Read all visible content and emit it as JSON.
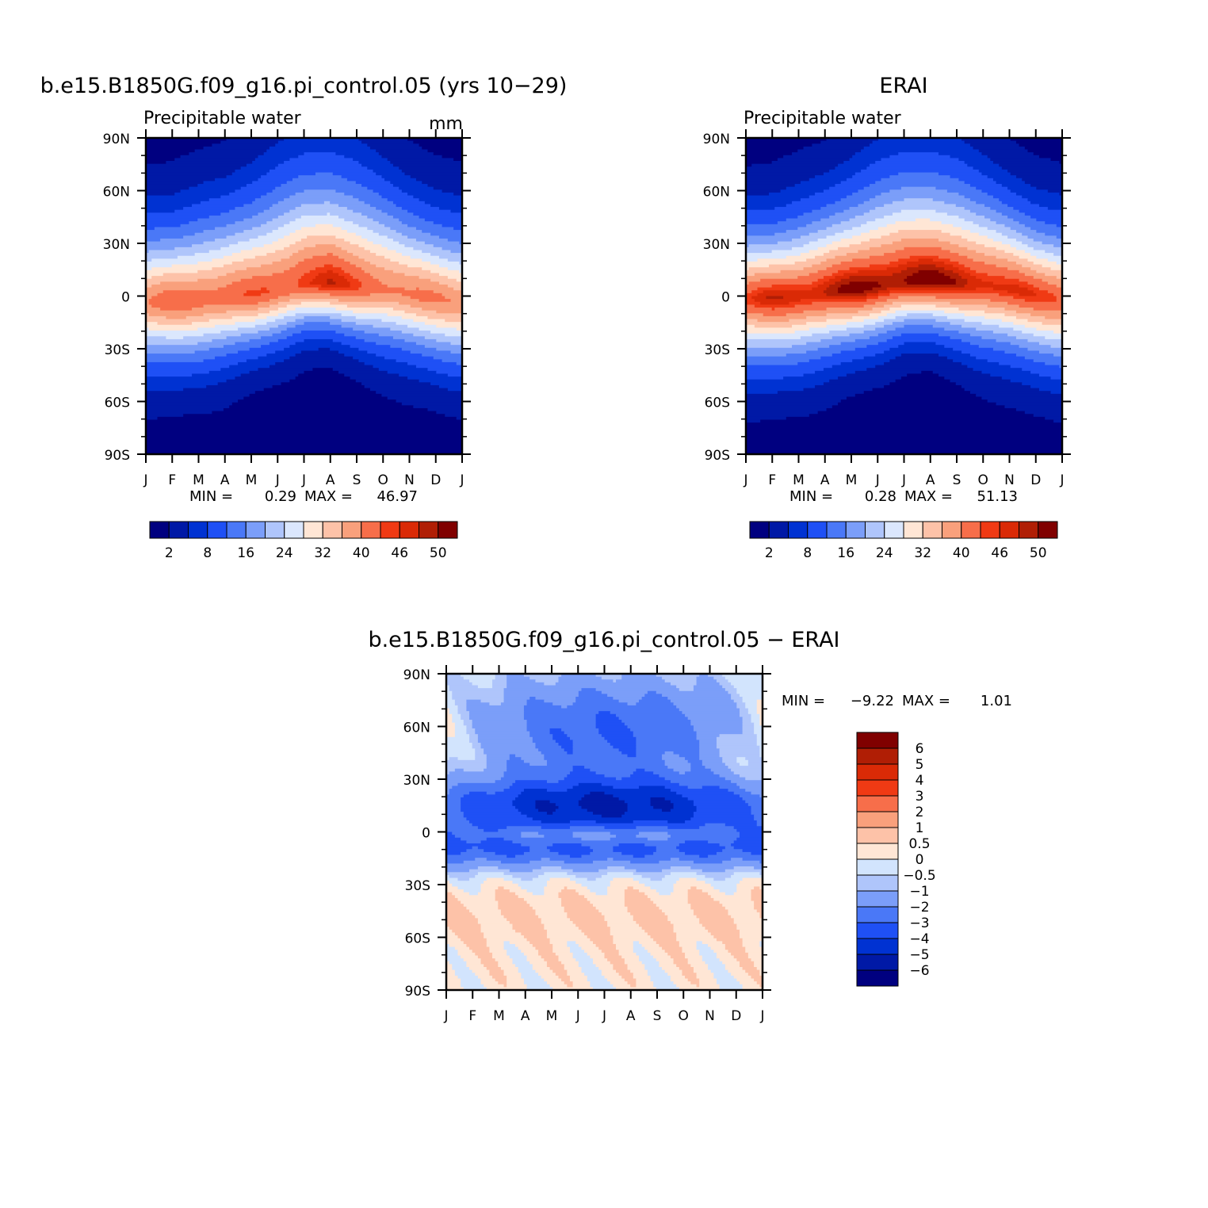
{
  "colors": {
    "abs_levels": [
      "#000080",
      "#0019a6",
      "#0032d2",
      "#1f50f5",
      "#4a78f7",
      "#7b9ef9",
      "#afc5fb",
      "#dbe7fd",
      "#ffe6d5",
      "#fdc2a8",
      "#f9a07c",
      "#f76e4a",
      "#f03a14",
      "#da2a06",
      "#b01e05",
      "#800000"
    ],
    "diff_levels": [
      "#000080",
      "#0019a6",
      "#0032d2",
      "#1f50f5",
      "#4a78f7",
      "#7b9ef9",
      "#afc5fb",
      "#d2e4fd",
      "#ffe6d5",
      "#fdc2a8",
      "#f9a07c",
      "#f76e4a",
      "#f03a14",
      "#da2a06",
      "#b01e05",
      "#800000"
    ]
  },
  "panel_model": {
    "title": "b.e15.B1850G.f09_g16.pi_control.05 (yrs 10−29)",
    "variable": "Precipitable water",
    "units": "mm",
    "stats": {
      "min_label": "MIN =",
      "min": "0.29",
      "max_label": "MAX =",
      "max": "46.97"
    }
  },
  "panel_obs": {
    "title": "ERAI",
    "variable": "Precipitable water",
    "stats": {
      "min_label": "MIN =",
      "min": "0.28",
      "max_label": "MAX =",
      "max": "51.13"
    }
  },
  "panel_diff": {
    "title": "b.e15.B1850G.f09_g16.pi_control.05 − ERAI",
    "stats": {
      "min_label": "MIN =",
      "min": "−9.22",
      "max_label": "MAX =",
      "max": "1.01"
    }
  },
  "abs_colorbar_labels": [
    "2",
    "8",
    "16",
    "24",
    "32",
    "40",
    "46",
    "50"
  ],
  "diff_colorbar_labels": [
    "6",
    "5",
    "4",
    "3",
    "2",
    "1",
    "0.5",
    "0",
    "−0.5",
    "−1",
    "−2",
    "−3",
    "−4",
    "−5",
    "−6"
  ],
  "chart_data": [
    {
      "type": "heatmap",
      "title": "b.e15.B1850G.f09_g16.pi_control.05 (yrs 10−29)",
      "subtitle": "Precipitable water",
      "units": "mm",
      "x": [
        "J",
        "F",
        "M",
        "A",
        "M",
        "J",
        "J",
        "A",
        "S",
        "O",
        "N",
        "D",
        "J"
      ],
      "y": [
        "90N",
        "60N",
        "30N",
        "0",
        "30S",
        "60S",
        "90S"
      ],
      "y_values": [
        90,
        60,
        30,
        0,
        -30,
        -60,
        -90
      ],
      "levels": [
        2,
        5,
        8,
        12,
        16,
        20,
        24,
        28,
        32,
        36,
        40,
        44,
        46,
        48,
        50
      ],
      "center_lat": [
        -4,
        -3,
        -2,
        -1,
        1,
        4,
        7,
        8,
        6,
        4,
        1,
        -1,
        -4
      ],
      "peak": [
        40,
        42,
        43,
        43,
        43,
        44,
        46,
        47,
        45,
        42,
        40,
        40,
        40
      ],
      "north_width": [
        36,
        36,
        38,
        40,
        44,
        48,
        50,
        50,
        48,
        44,
        40,
        37,
        36
      ],
      "south_width": [
        30,
        30,
        29,
        28,
        26,
        24,
        22,
        22,
        24,
        27,
        29,
        30,
        30
      ],
      "min": 0.29,
      "max": 46.97
    },
    {
      "type": "heatmap",
      "title": "ERAI",
      "subtitle": "Precipitable water",
      "x": [
        "J",
        "F",
        "M",
        "A",
        "M",
        "J",
        "J",
        "A",
        "S",
        "O",
        "N",
        "D",
        "J"
      ],
      "y": [
        "90N",
        "60N",
        "30N",
        "0",
        "30S",
        "60S",
        "90S"
      ],
      "y_values": [
        90,
        60,
        30,
        0,
        -30,
        -60,
        -90
      ],
      "levels": [
        2,
        5,
        8,
        12,
        16,
        20,
        24,
        28,
        32,
        36,
        40,
        44,
        46,
        48,
        50
      ],
      "center_lat": [
        -2,
        -1,
        0,
        2,
        4,
        6,
        8,
        9,
        8,
        6,
        4,
        1,
        -2
      ],
      "peak": [
        45,
        47,
        48,
        49,
        50,
        51,
        51,
        51,
        50,
        48,
        46,
        45,
        45
      ],
      "north_width": [
        34,
        34,
        36,
        38,
        42,
        46,
        48,
        48,
        46,
        42,
        38,
        35,
        34
      ],
      "south_width": [
        31,
        31,
        30,
        29,
        27,
        25,
        23,
        23,
        25,
        28,
        30,
        31,
        31
      ],
      "min": 0.28,
      "max": 51.13
    },
    {
      "type": "heatmap",
      "title": "b.e15.B1850G.f09_g16.pi_control.05 − ERAI",
      "x": [
        "J",
        "F",
        "M",
        "A",
        "M",
        "J",
        "J",
        "A",
        "S",
        "O",
        "N",
        "D",
        "J"
      ],
      "y": [
        "90N",
        "60N",
        "30N",
        "0",
        "30S",
        "60S",
        "90S"
      ],
      "y_values": [
        90,
        60,
        30,
        0,
        -30,
        -60,
        -90
      ],
      "levels": [
        -6,
        -5,
        -4,
        -3,
        -2,
        -1,
        -0.5,
        0,
        0.5,
        1,
        2,
        3,
        4,
        5,
        6
      ],
      "min": -9.22,
      "max": 1.01
    }
  ]
}
